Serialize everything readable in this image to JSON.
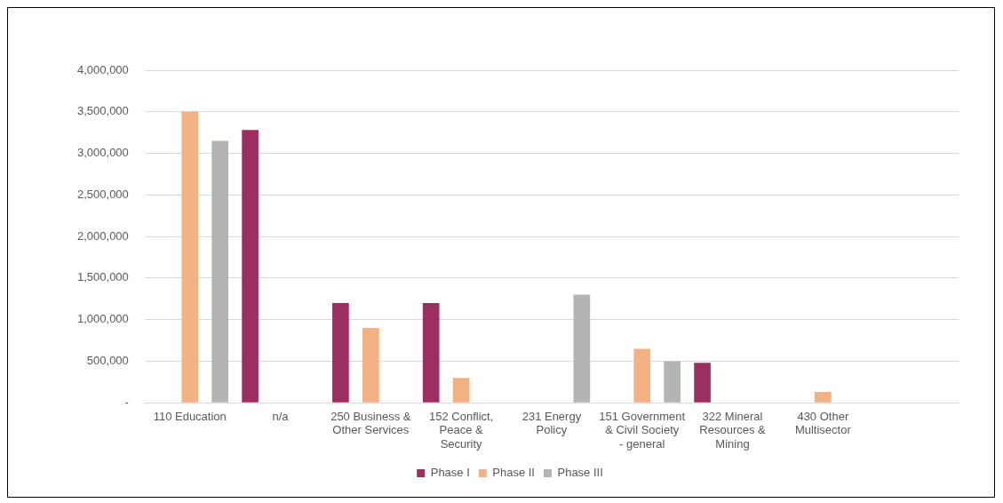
{
  "chart_data": {
    "type": "bar",
    "categories": [
      "110 Education",
      "n/a",
      "250 Business & Other Services",
      "152 Conflict, Peace & Security",
      "231 Energy Policy",
      "151 Government & Civil Society - general",
      "322 Mineral Resources & Mining",
      "430 Other Multisector",
      null
    ],
    "series": [
      {
        "name": "Phase I",
        "color": "#9b3060",
        "values": [
          null,
          3280000,
          1200000,
          1200000,
          null,
          null,
          480000,
          null,
          null
        ]
      },
      {
        "name": "Phase II",
        "color": "#f4b183",
        "values": [
          3500000,
          null,
          900000,
          300000,
          null,
          650000,
          null,
          130000,
          null
        ]
      },
      {
        "name": "Phase III",
        "color": "#b4b4b4",
        "values": [
          3150000,
          null,
          null,
          null,
          1300000,
          500000,
          null,
          null,
          null
        ]
      }
    ],
    "ylim": [
      0,
      4000000
    ],
    "yticks": [
      {
        "value": 0,
        "label": "-"
      },
      {
        "value": 500000,
        "label": "500,000"
      },
      {
        "value": 1000000,
        "label": "1,000,000"
      },
      {
        "value": 1500000,
        "label": "1,500,000"
      },
      {
        "value": 2000000,
        "label": "2,000,000"
      },
      {
        "value": 2500000,
        "label": "2,500,000"
      },
      {
        "value": 3000000,
        "label": "3,000,000"
      },
      {
        "value": 3500000,
        "label": "3,500,000"
      },
      {
        "value": 4000000,
        "label": "4,000,000"
      }
    ],
    "grid": "y",
    "legend": "bottom"
  }
}
